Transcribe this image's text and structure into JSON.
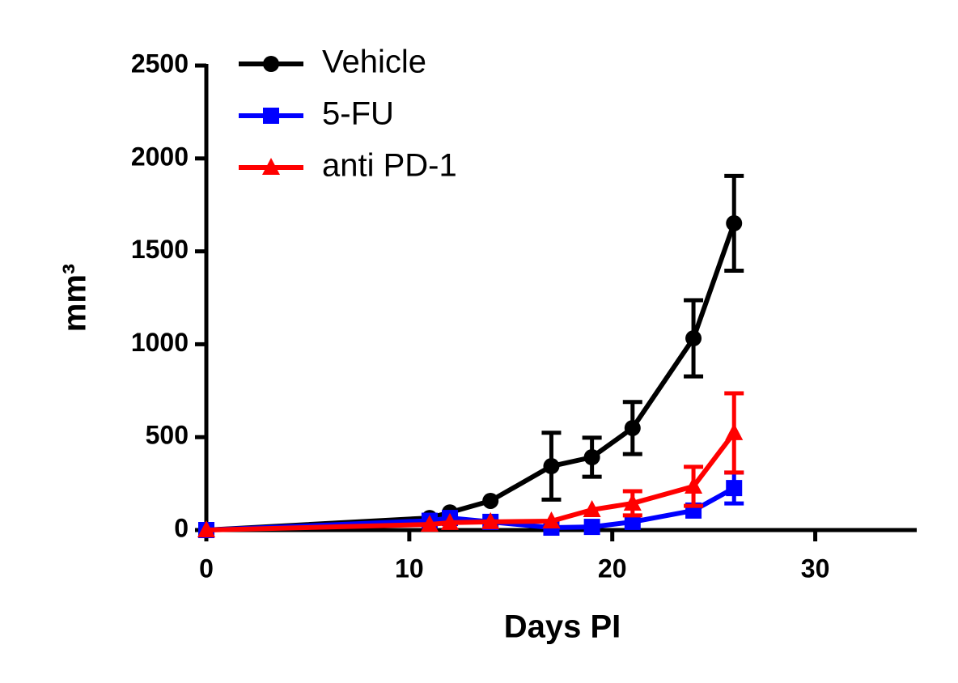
{
  "chart_data": {
    "type": "line",
    "xlabel": "Days PI",
    "ylabel": "mm³",
    "xlim": [
      0,
      35
    ],
    "ylim": [
      0,
      2500
    ],
    "xticks": [
      0,
      10,
      20,
      30
    ],
    "yticks": [
      0,
      500,
      1000,
      1500,
      2000,
      2500
    ],
    "legend": "top-left",
    "series": [
      {
        "name": "Vehicle",
        "color": "#000000",
        "marker": "circle",
        "x": [
          0,
          11,
          12,
          14,
          17,
          19,
          21,
          24,
          26
        ],
        "values": [
          0,
          65,
          95,
          157,
          344,
          392,
          549,
          1032,
          1651
        ],
        "errors": [
          0,
          0,
          0,
          0,
          180,
          105,
          140,
          205,
          255
        ]
      },
      {
        "name": "5-FU",
        "color": "#0000ff",
        "marker": "square",
        "x": [
          0,
          11,
          12,
          14,
          17,
          19,
          21,
          24,
          26
        ],
        "values": [
          0,
          50,
          65,
          44,
          13,
          17,
          44,
          105,
          226
        ],
        "errors": [
          0,
          0,
          0,
          0,
          0,
          0,
          0,
          0,
          83
        ]
      },
      {
        "name": "anti PD-1",
        "color": "#ff0000",
        "marker": "triangle",
        "x": [
          0,
          11,
          12,
          14,
          17,
          19,
          21,
          24,
          26
        ],
        "values": [
          0,
          30,
          40,
          44,
          48,
          109,
          144,
          235,
          523
        ],
        "errors": [
          0,
          0,
          0,
          0,
          0,
          0,
          65,
          105,
          213
        ]
      }
    ]
  }
}
